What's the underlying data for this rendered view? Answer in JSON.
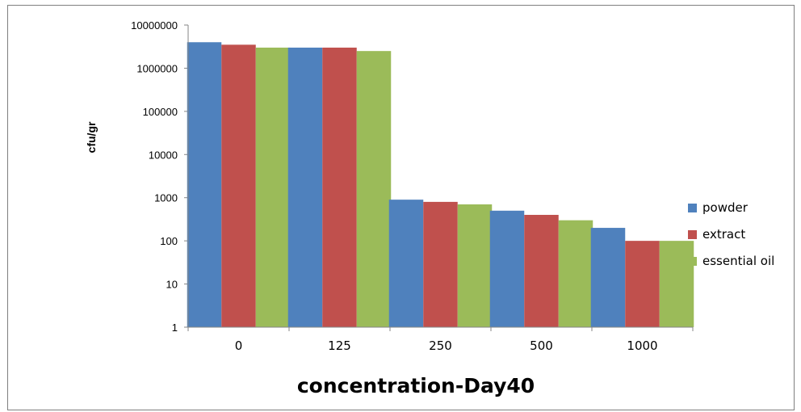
{
  "chart_data": {
    "type": "bar",
    "categories": [
      "0",
      "125",
      "250",
      "500",
      "1000"
    ],
    "series": [
      {
        "name": "powder",
        "values": [
          4000000,
          3000000,
          900,
          500,
          200
        ],
        "color": "#4f81bd"
      },
      {
        "name": "extract",
        "values": [
          3500000,
          3000000,
          800,
          400,
          100
        ],
        "color": "#c0504d"
      },
      {
        "name": "essential oil",
        "values": [
          3000000,
          2500000,
          700,
          300,
          100
        ],
        "color": "#9bbb59"
      }
    ],
    "yscale": "log",
    "ylim": [
      1,
      10000000
    ],
    "yticks": [
      "1",
      "10",
      "100",
      "1000",
      "10000",
      "100000",
      "1000000",
      "10000000"
    ],
    "xlabel": "concentration-Day40",
    "ylabel": "cfu/gr",
    "legend": "right"
  }
}
